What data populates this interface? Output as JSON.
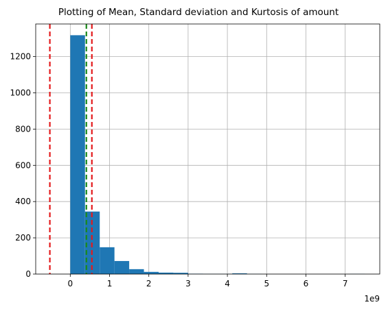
{
  "chart_data": {
    "type": "bar",
    "title": "Plotting of Mean, Standard deviation and Kurtosis of amount",
    "xlabel": "",
    "ylabel": "",
    "x_offset_label": "1e9",
    "xlim": [
      -0.88,
      7.88
    ],
    "ylim": [
      0,
      1380
    ],
    "grid": true,
    "x_ticks": [
      0,
      1,
      2,
      3,
      4,
      5,
      6,
      7
    ],
    "y_ticks": [
      0,
      200,
      400,
      600,
      800,
      1000,
      1200
    ],
    "bar_color": "#1f77b4",
    "bins": [
      {
        "start": 0.0,
        "end": 0.375,
        "count": 1318
      },
      {
        "start": 0.375,
        "end": 0.75,
        "count": 345
      },
      {
        "start": 0.75,
        "end": 1.125,
        "count": 148
      },
      {
        "start": 1.125,
        "end": 1.5,
        "count": 72
      },
      {
        "start": 1.5,
        "end": 1.875,
        "count": 27
      },
      {
        "start": 1.875,
        "end": 2.25,
        "count": 12
      },
      {
        "start": 2.25,
        "end": 2.625,
        "count": 8
      },
      {
        "start": 2.625,
        "end": 3.0,
        "count": 7
      },
      {
        "start": 3.0,
        "end": 3.375,
        "count": 2
      },
      {
        "start": 3.375,
        "end": 3.75,
        "count": 1
      },
      {
        "start": 3.75,
        "end": 4.125,
        "count": 1
      },
      {
        "start": 4.125,
        "end": 4.5,
        "count": 4
      },
      {
        "start": 4.5,
        "end": 4.875,
        "count": 1
      },
      {
        "start": 4.875,
        "end": 5.25,
        "count": 0
      },
      {
        "start": 5.25,
        "end": 5.625,
        "count": 0
      },
      {
        "start": 5.625,
        "end": 6.0,
        "count": 0
      },
      {
        "start": 6.0,
        "end": 6.375,
        "count": 0
      },
      {
        "start": 6.375,
        "end": 6.75,
        "count": 0
      },
      {
        "start": 6.75,
        "end": 7.125,
        "count": 0
      },
      {
        "start": 7.125,
        "end": 7.5,
        "count": 1
      }
    ],
    "reference_lines": [
      {
        "x": -0.52,
        "color": "#e31a1c"
      },
      {
        "x": 0.55,
        "color": "#e31a1c"
      },
      {
        "x": 0.41,
        "color": "#1a8a1a"
      }
    ]
  }
}
